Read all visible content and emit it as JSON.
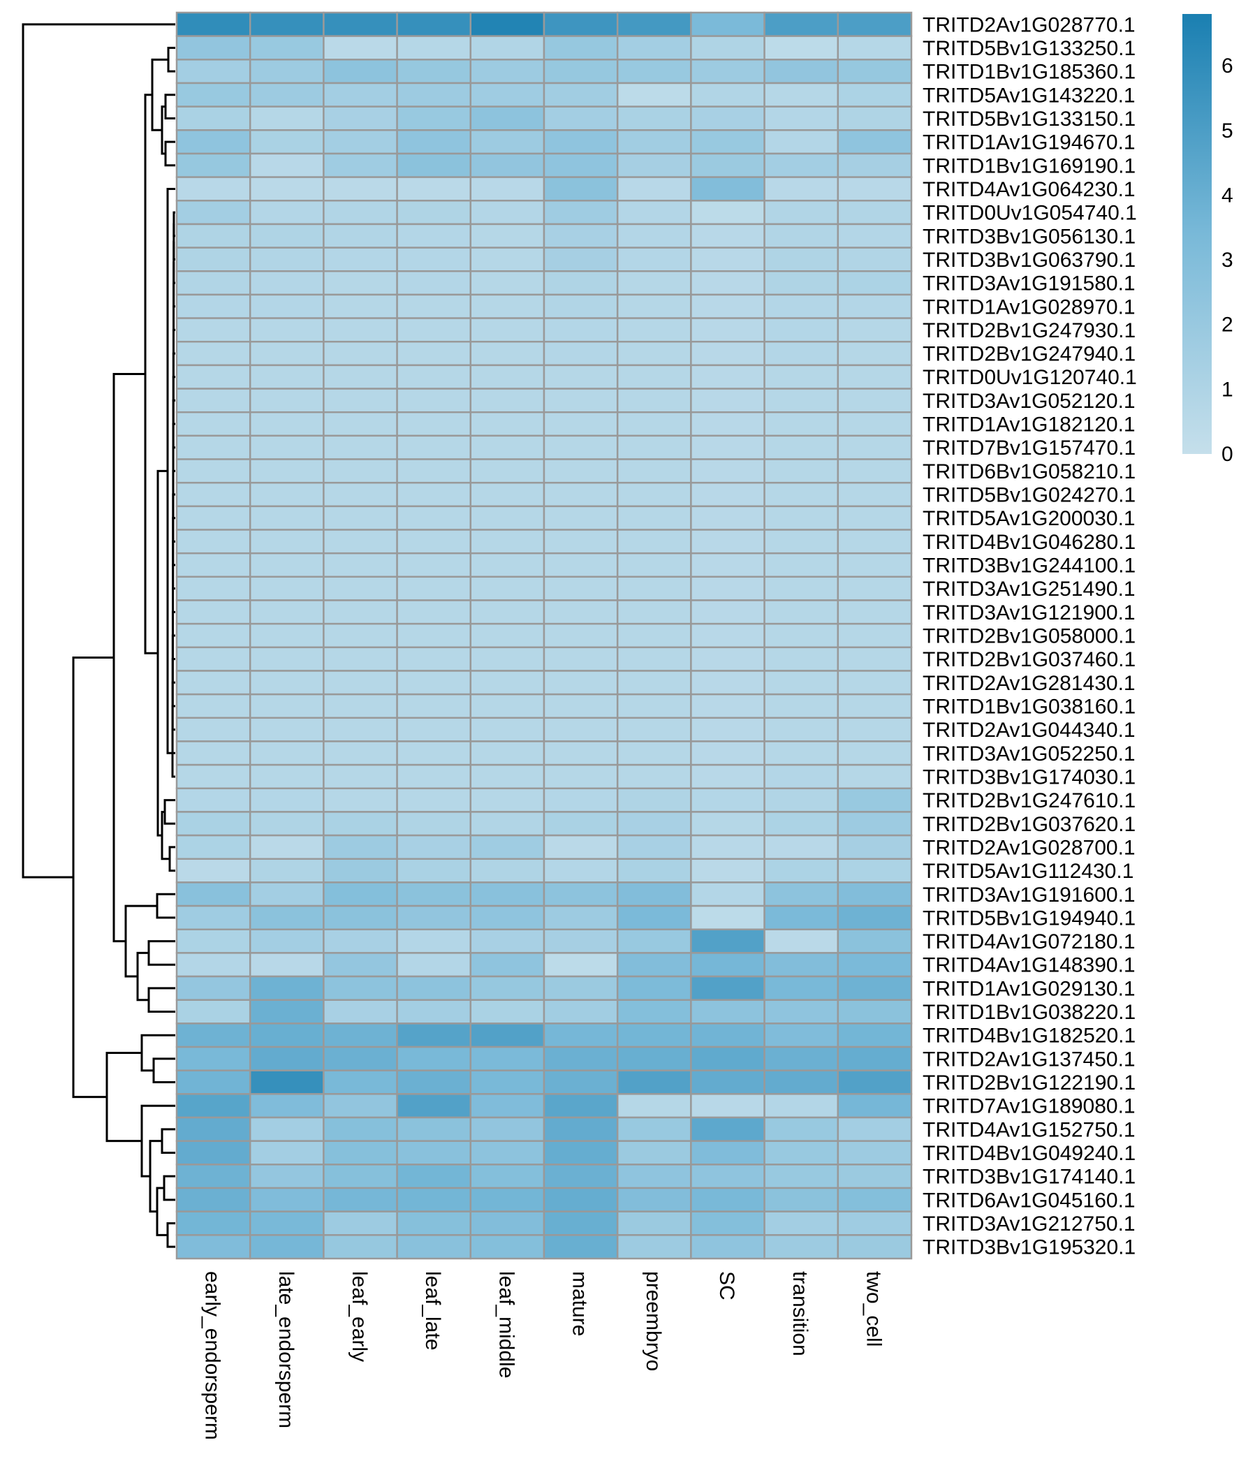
{
  "chart_data": {
    "type": "heatmap",
    "title": "",
    "xlabel": "",
    "ylabel": "",
    "columns": [
      "early_endorsperm",
      "late_endorsperm",
      "leaf_early",
      "leaf_late",
      "leaf_middle",
      "mature",
      "preembryo",
      "SC",
      "transition",
      "two_cell"
    ],
    "rows": [
      "TRITD2Av1G028770.1",
      "TRITD5Bv1G133250.1",
      "TRITD1Bv1G185360.1",
      "TRITD5Av1G143220.1",
      "TRITD5Bv1G133150.1",
      "TRITD1Av1G194670.1",
      "TRITD1Bv1G169190.1",
      "TRITD4Av1G064230.1",
      "TRITD0Uv1G054740.1",
      "TRITD3Bv1G056130.1",
      "TRITD3Bv1G063790.1",
      "TRITD3Av1G191580.1",
      "TRITD1Av1G028970.1",
      "TRITD2Bv1G247930.1",
      "TRITD2Bv1G247940.1",
      "TRITD0Uv1G120740.1",
      "TRITD3Av1G052120.1",
      "TRITD1Av1G182120.1",
      "TRITD7Bv1G157470.1",
      "TRITD6Bv1G058210.1",
      "TRITD5Bv1G024270.1",
      "TRITD5Av1G200030.1",
      "TRITD4Bv1G046280.1",
      "TRITD3Bv1G244100.1",
      "TRITD3Av1G251490.1",
      "TRITD3Av1G121900.1",
      "TRITD2Bv1G058000.1",
      "TRITD2Bv1G037460.1",
      "TRITD2Av1G281430.1",
      "TRITD1Bv1G038160.1",
      "TRITD2Av1G044340.1",
      "TRITD3Av1G052250.1",
      "TRITD3Bv1G174030.1",
      "TRITD2Bv1G247610.1",
      "TRITD2Bv1G037620.1",
      "TRITD2Av1G028700.1",
      "TRITD5Av1G112430.1",
      "TRITD3Av1G191600.1",
      "TRITD5Bv1G194940.1",
      "TRITD4Av1G072180.1",
      "TRITD4Av1G148390.1",
      "TRITD1Av1G029130.1",
      "TRITD1Bv1G038220.1",
      "TRITD4Bv1G182520.1",
      "TRITD2Av1G137450.1",
      "TRITD2Bv1G122190.1",
      "TRITD7Av1G189080.1",
      "TRITD4Av1G152750.1",
      "TRITD4Bv1G049240.1",
      "TRITD3Bv1G174140.1",
      "TRITD6Av1G045160.1",
      "TRITD3Av1G212750.1",
      "TRITD3Bv1G195320.1"
    ],
    "values": [
      [
        6.0,
        5.8,
        5.8,
        5.8,
        6.5,
        5.5,
        5.3,
        3.3,
        5.0,
        5.0
      ],
      [
        2.3,
        2.0,
        0.5,
        0.7,
        0.9,
        2.1,
        1.5,
        1.0,
        0.4,
        0.7
      ],
      [
        1.5,
        1.8,
        2.5,
        2.1,
        1.8,
        2.1,
        2.0,
        1.8,
        2.3,
        2.1
      ],
      [
        2.0,
        1.8,
        1.5,
        1.8,
        1.7,
        1.6,
        0.4,
        0.9,
        0.7,
        1.1
      ],
      [
        1.2,
        0.7,
        1.3,
        2.0,
        2.5,
        1.5,
        1.2,
        1.3,
        0.8,
        1.0
      ],
      [
        2.4,
        1.2,
        1.5,
        2.4,
        1.8,
        2.4,
        1.6,
        2.0,
        0.8,
        2.4
      ],
      [
        2.1,
        0.6,
        1.7,
        2.6,
        2.3,
        2.4,
        1.4,
        1.9,
        1.5,
        1.4
      ],
      [
        0.6,
        0.5,
        0.5,
        0.5,
        0.6,
        2.6,
        0.6,
        3.0,
        0.6,
        0.6
      ],
      [
        1.5,
        0.8,
        0.9,
        1.0,
        0.8,
        1.7,
        0.8,
        0.4,
        0.9,
        0.9
      ],
      [
        1.0,
        1.0,
        0.9,
        0.8,
        0.7,
        1.3,
        0.8,
        0.6,
        0.9,
        0.8
      ],
      [
        1.0,
        0.9,
        0.8,
        0.8,
        0.7,
        1.4,
        0.8,
        0.6,
        1.0,
        0.9
      ],
      [
        0.9,
        0.8,
        0.7,
        0.8,
        0.7,
        1.0,
        0.7,
        0.6,
        1.0,
        1.1
      ],
      [
        0.8,
        0.8,
        0.7,
        0.7,
        0.7,
        0.9,
        0.7,
        0.6,
        0.8,
        0.8
      ],
      [
        0.7,
        0.7,
        0.7,
        0.7,
        0.7,
        0.8,
        0.7,
        0.6,
        0.8,
        0.7
      ],
      [
        0.7,
        0.7,
        0.7,
        0.7,
        0.7,
        0.8,
        0.7,
        0.6,
        0.8,
        0.7
      ],
      [
        0.7,
        0.7,
        0.7,
        0.7,
        0.7,
        0.7,
        0.7,
        0.6,
        0.7,
        0.7
      ],
      [
        0.7,
        0.7,
        0.7,
        0.7,
        0.7,
        0.7,
        0.7,
        0.6,
        0.7,
        0.7
      ],
      [
        0.7,
        0.7,
        0.7,
        0.7,
        0.7,
        0.7,
        0.7,
        0.6,
        0.7,
        0.7
      ],
      [
        0.7,
        0.7,
        0.7,
        0.7,
        0.7,
        0.7,
        0.7,
        0.6,
        0.7,
        0.7
      ],
      [
        0.7,
        0.7,
        0.7,
        0.7,
        0.7,
        0.7,
        0.7,
        0.6,
        0.7,
        0.7
      ],
      [
        0.7,
        0.7,
        0.7,
        0.7,
        0.7,
        0.7,
        0.7,
        0.6,
        0.7,
        0.7
      ],
      [
        0.7,
        0.7,
        0.7,
        0.7,
        0.7,
        0.7,
        0.7,
        0.6,
        0.7,
        0.7
      ],
      [
        0.7,
        0.7,
        0.7,
        0.7,
        0.7,
        0.7,
        0.7,
        0.6,
        0.7,
        0.7
      ],
      [
        0.7,
        0.7,
        0.7,
        0.7,
        0.7,
        0.7,
        0.7,
        0.6,
        0.7,
        0.7
      ],
      [
        0.7,
        0.7,
        0.7,
        0.7,
        0.7,
        0.7,
        0.7,
        0.6,
        0.7,
        0.7
      ],
      [
        0.7,
        0.7,
        0.7,
        0.7,
        0.7,
        0.7,
        0.7,
        0.6,
        0.7,
        0.7
      ],
      [
        0.7,
        0.7,
        0.7,
        0.7,
        0.7,
        0.7,
        0.7,
        0.6,
        0.7,
        0.7
      ],
      [
        0.7,
        0.7,
        0.7,
        0.7,
        0.7,
        0.7,
        0.7,
        0.6,
        0.7,
        0.7
      ],
      [
        0.7,
        0.7,
        0.7,
        0.7,
        0.7,
        0.7,
        0.7,
        0.6,
        0.7,
        0.7
      ],
      [
        0.7,
        0.7,
        0.7,
        0.7,
        0.7,
        0.7,
        0.7,
        0.6,
        0.7,
        0.7
      ],
      [
        0.7,
        0.7,
        0.7,
        0.7,
        0.7,
        0.7,
        0.7,
        0.6,
        0.7,
        0.7
      ],
      [
        0.7,
        0.7,
        0.7,
        0.7,
        0.7,
        0.7,
        0.7,
        0.6,
        0.7,
        0.7
      ],
      [
        0.7,
        0.7,
        0.7,
        0.7,
        0.7,
        0.7,
        0.7,
        0.6,
        0.8,
        0.7
      ],
      [
        0.8,
        0.8,
        0.7,
        0.7,
        0.7,
        0.8,
        1.0,
        0.8,
        0.9,
        2.0
      ],
      [
        1.2,
        1.0,
        1.2,
        1.0,
        0.9,
        1.2,
        1.3,
        0.7,
        1.1,
        1.8
      ],
      [
        1.1,
        0.5,
        1.8,
        1.3,
        1.7,
        0.5,
        1.3,
        0.6,
        0.6,
        1.4
      ],
      [
        0.5,
        1.0,
        1.9,
        1.2,
        1.0,
        0.8,
        1.2,
        0.5,
        1.1,
        1.1
      ],
      [
        2.7,
        1.5,
        2.9,
        2.6,
        2.7,
        2.5,
        3.0,
        0.8,
        2.5,
        3.0
      ],
      [
        1.7,
        2.6,
        2.6,
        2.3,
        2.4,
        1.8,
        3.3,
        0.4,
        3.3,
        3.8
      ],
      [
        1.1,
        1.5,
        1.3,
        0.8,
        1.3,
        1.4,
        2.0,
        4.8,
        0.5,
        2.6
      ],
      [
        0.8,
        0.6,
        2.2,
        0.8,
        2.4,
        0.4,
        3.0,
        3.5,
        3.0,
        3.3
      ],
      [
        2.2,
        3.8,
        2.5,
        2.5,
        2.1,
        1.9,
        3.2,
        4.8,
        3.4,
        3.8
      ],
      [
        1.2,
        3.9,
        1.3,
        1.5,
        1.2,
        1.6,
        2.9,
        2.5,
        2.4,
        2.6
      ],
      [
        3.8,
        4.0,
        3.8,
        4.7,
        4.8,
        3.5,
        3.6,
        3.7,
        3.1,
        3.6
      ],
      [
        3.4,
        4.2,
        3.9,
        3.4,
        3.3,
        3.9,
        4.0,
        4.3,
        3.9,
        4.1
      ],
      [
        3.7,
        5.8,
        3.4,
        3.9,
        3.4,
        3.9,
        4.8,
        4.2,
        4.2,
        4.8
      ],
      [
        4.6,
        3.1,
        2.3,
        4.8,
        3.1,
        4.5,
        0.7,
        0.6,
        0.8,
        3.5
      ],
      [
        4.2,
        1.5,
        2.8,
        2.6,
        2.3,
        4.2,
        2.0,
        4.4,
        2.0,
        1.5
      ],
      [
        4.2,
        1.5,
        2.8,
        2.7,
        2.5,
        4.1,
        1.9,
        3.1,
        2.0,
        1.8
      ],
      [
        3.8,
        2.2,
        2.8,
        3.6,
        2.9,
        3.9,
        2.4,
        2.4,
        2.0,
        1.9
      ],
      [
        3.9,
        3.1,
        3.5,
        3.6,
        3.6,
        4.1,
        3.0,
        3.4,
        2.6,
        2.9
      ],
      [
        3.6,
        3.4,
        1.8,
        2.8,
        3.0,
        4.0,
        1.9,
        2.9,
        1.5,
        1.7
      ],
      [
        3.1,
        3.5,
        2.1,
        2.7,
        2.9,
        4.0,
        1.8,
        2.4,
        1.8,
        1.9
      ]
    ],
    "color_scale": {
      "min": 0,
      "max": 6.8,
      "low_color": "#c5dfeb",
      "mid_color": "#79b9d8",
      "high_color": "#1a7fb1",
      "ticks": [
        0,
        1,
        2,
        3,
        4,
        5,
        6
      ]
    },
    "grid_color": "#999999",
    "row_dendrogram": true,
    "legend_position": "top-right"
  }
}
